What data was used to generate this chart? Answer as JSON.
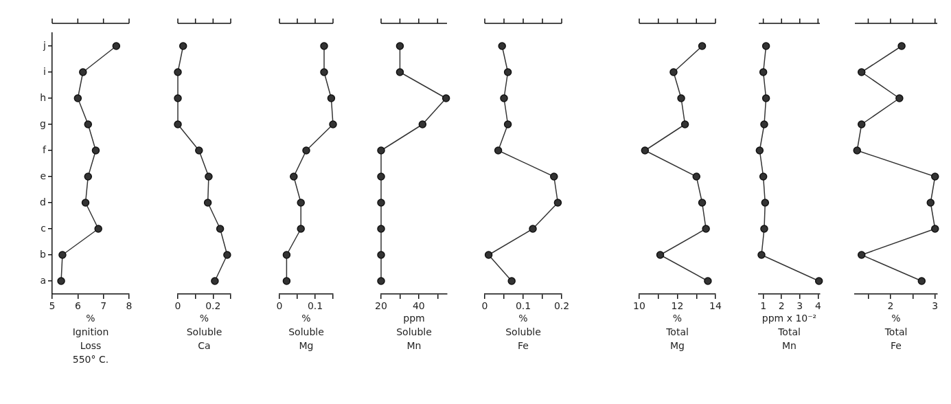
{
  "chart_data": [
    {
      "type": "line",
      "orientation": "horizontal",
      "categories": [
        "j",
        "i",
        "h",
        "g",
        "f",
        "e",
        "d",
        "c",
        "b",
        "a"
      ],
      "series": [
        {
          "color": "#333333",
          "values": [
            7.5,
            6.2,
            6.0,
            6.4,
            6.7,
            6.4,
            6.3,
            6.8,
            5.4,
            5.35
          ]
        }
      ],
      "xlim": [
        5,
        8
      ],
      "xticks": [
        5,
        6,
        7,
        8
      ],
      "xlabel": "%\nIgnition\nLoss\n550° C.",
      "marker": "circle"
    },
    {
      "type": "line",
      "orientation": "horizontal",
      "categories": [
        null,
        null,
        null,
        null,
        null,
        null,
        null,
        null,
        null,
        null
      ],
      "series": [
        {
          "color": "#333333",
          "values": [
            0.03,
            0,
            0,
            0,
            0.12,
            0.175,
            0.17,
            0.24,
            0.28,
            0.21
          ]
        }
      ],
      "xlim": [
        0,
        0.3
      ],
      "xticks": [
        0,
        {
          "value": 0.1,
          "label": null
        },
        0.2,
        {
          "value": 0.3,
          "label": null
        }
      ],
      "xlabel": "%\nSoluble\nCa",
      "marker": "circle",
      "tick_labels": "x"
    },
    {
      "type": "line",
      "orientation": "horizontal",
      "categories": [
        null,
        null,
        null,
        null,
        null,
        null,
        null,
        null,
        null,
        null
      ],
      "series": [
        {
          "color": "#333333",
          "values": [
            0.125,
            0.125,
            0.145,
            0.15,
            0.075,
            0.04,
            0.06,
            0.06,
            0.02,
            0.02
          ]
        }
      ],
      "xlim": [
        0,
        0.15
      ],
      "xticks": [
        0,
        {
          "value": 0.05,
          "label": null
        },
        0.1,
        {
          "value": 0.15,
          "label": null
        }
      ],
      "xlabel": "%\nSoluble\nMg",
      "marker": "circle",
      "tick_labels": "x"
    },
    {
      "type": "line",
      "orientation": "horizontal",
      "categories": [
        null,
        null,
        null,
        null,
        null,
        null,
        null,
        null,
        null,
        null
      ],
      "series": [
        {
          "color": "#333333",
          "values": [
            30,
            30,
            54.5,
            42,
            20,
            20,
            20,
            20,
            20,
            20
          ]
        }
      ],
      "xlim": [
        20,
        55
      ],
      "xticks": [
        20,
        {
          "value": 30,
          "label": null
        },
        40,
        {
          "value": 50,
          "label": null
        }
      ],
      "xlabel": "ppm\nSoluble\nMn",
      "marker": "circle",
      "tick_labels": "x"
    },
    {
      "type": "line",
      "orientation": "horizontal",
      "categories": [
        null,
        null,
        null,
        null,
        null,
        null,
        null,
        null,
        null,
        null
      ],
      "series": [
        {
          "color": "#333333",
          "values": [
            0.045,
            0.06,
            0.05,
            0.06,
            0.035,
            0.18,
            0.19,
            0.125,
            0.01,
            0.07
          ]
        }
      ],
      "xlim": [
        0,
        0.2
      ],
      "xticks": [
        0,
        {
          "value": 0.05,
          "label": null
        },
        0.1,
        {
          "value": 0.15,
          "label": null
        },
        0.2
      ],
      "xlabel": "%\nSoluble\nFe",
      "marker": "circle",
      "tick_labels": "x"
    },
    {
      "type": "line",
      "orientation": "horizontal",
      "categories": [
        null,
        null,
        null,
        null,
        null,
        null,
        null,
        null,
        null,
        null
      ],
      "series": [
        {
          "color": "#333333",
          "values": [
            13.3,
            11.8,
            12.2,
            12.4,
            10.3,
            13.0,
            13.3,
            13.5,
            11.1,
            13.6
          ]
        }
      ],
      "xlim": [
        10,
        14
      ],
      "xticks": [
        10,
        {
          "value": 11,
          "label": null
        },
        12,
        {
          "value": 13,
          "label": null
        },
        14
      ],
      "xlabel": "%\nTotal\nMg",
      "marker": "circle",
      "tick_labels": "x"
    },
    {
      "type": "line",
      "orientation": "horizontal",
      "categories": [
        null,
        null,
        null,
        null,
        null,
        null,
        null,
        null,
        null,
        null
      ],
      "series": [
        {
          "color": "#333333",
          "values": [
            1.15,
            1.0,
            1.15,
            1.05,
            0.8,
            1.0,
            1.1,
            1.05,
            0.9,
            4.05
          ]
        }
      ],
      "xlim": [
        0.75,
        4.1
      ],
      "xticks": [
        1,
        2,
        3,
        4
      ],
      "xlabel": "ppm x 10⁻²\nTotal\nMn",
      "marker": "circle",
      "tick_labels": "x"
    },
    {
      "type": "line",
      "orientation": "horizontal",
      "categories": [
        null,
        null,
        null,
        null,
        null,
        null,
        null,
        null,
        null,
        null
      ],
      "series": [
        {
          "color": "#333333",
          "values": [
            2.25,
            1.35,
            2.2,
            1.35,
            1.25,
            3.0,
            2.9,
            3.0,
            1.35,
            2.7
          ]
        }
      ],
      "xlim": [
        1.2,
        3.05
      ],
      "xticks": [
        {
          "value": 1.5,
          "label": null
        },
        2,
        {
          "value": 2.5,
          "label": null
        },
        3
      ],
      "xlabel": "%\nTotal\nFe",
      "marker": "circle",
      "tick_labels": "x"
    }
  ]
}
